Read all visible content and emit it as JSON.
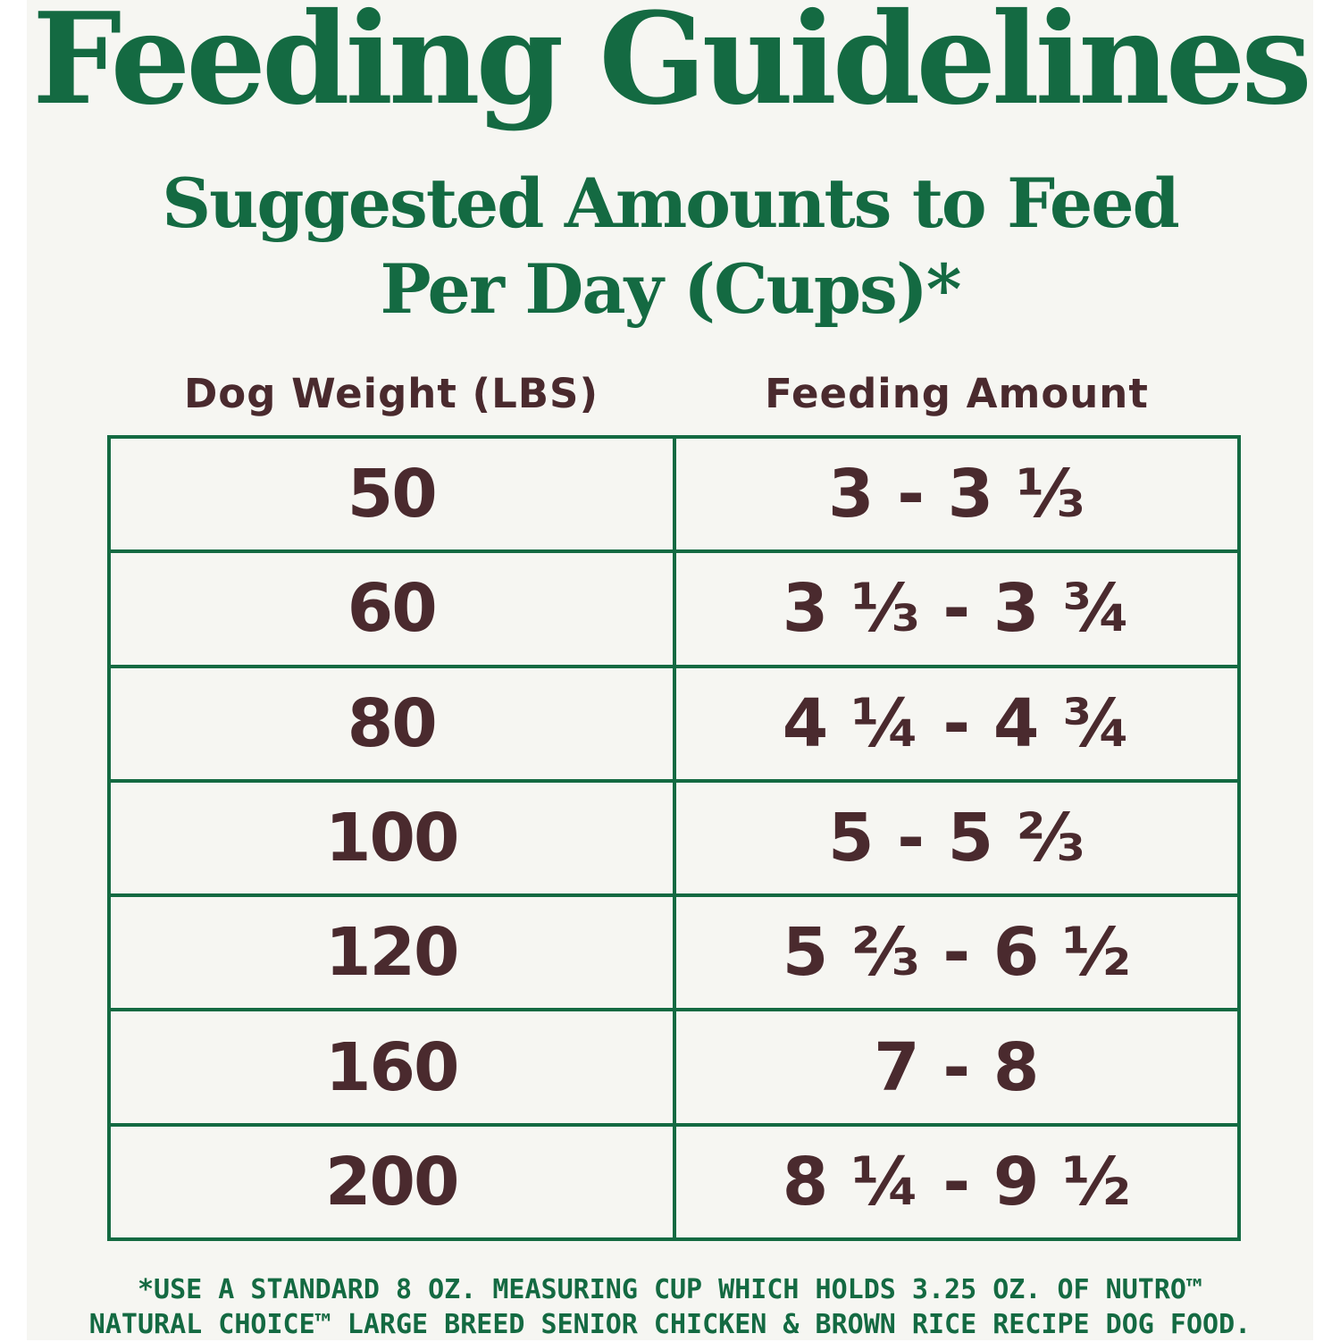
{
  "title": "Feeding Guidelines",
  "subtitle_line1": "Suggested Amounts to Feed",
  "subtitle_line2": "Per Day (Cups)*",
  "table": {
    "headers": [
      "Dog Weight (LBS)",
      "Feeding Amount"
    ],
    "rows": [
      {
        "weight": "50",
        "amount": "3 - 3 ⅓"
      },
      {
        "weight": "60",
        "amount": "3 ⅓ - 3 ¾"
      },
      {
        "weight": "80",
        "amount": "4 ¼ - 4 ¾"
      },
      {
        "weight": "100",
        "amount": "5 - 5 ⅔"
      },
      {
        "weight": "120",
        "amount": "5 ⅔ - 6 ½"
      },
      {
        "weight": "160",
        "amount": "7 - 8"
      },
      {
        "weight": "200",
        "amount": "8 ¼ - 9 ½"
      }
    ]
  },
  "footnote_line1": "*USE A STANDARD 8 OZ. MEASURING CUP WHICH HOLDS 3.25 OZ. OF NUTRO™",
  "footnote_line2": "NATURAL CHOICE™ LARGE BREED SENIOR CHICKEN & BROWN RICE RECIPE DOG FOOD.",
  "colors": {
    "accent_green": "#146a42",
    "text_brown": "#4a2a2e",
    "panel_background": "#f6f6f2"
  }
}
